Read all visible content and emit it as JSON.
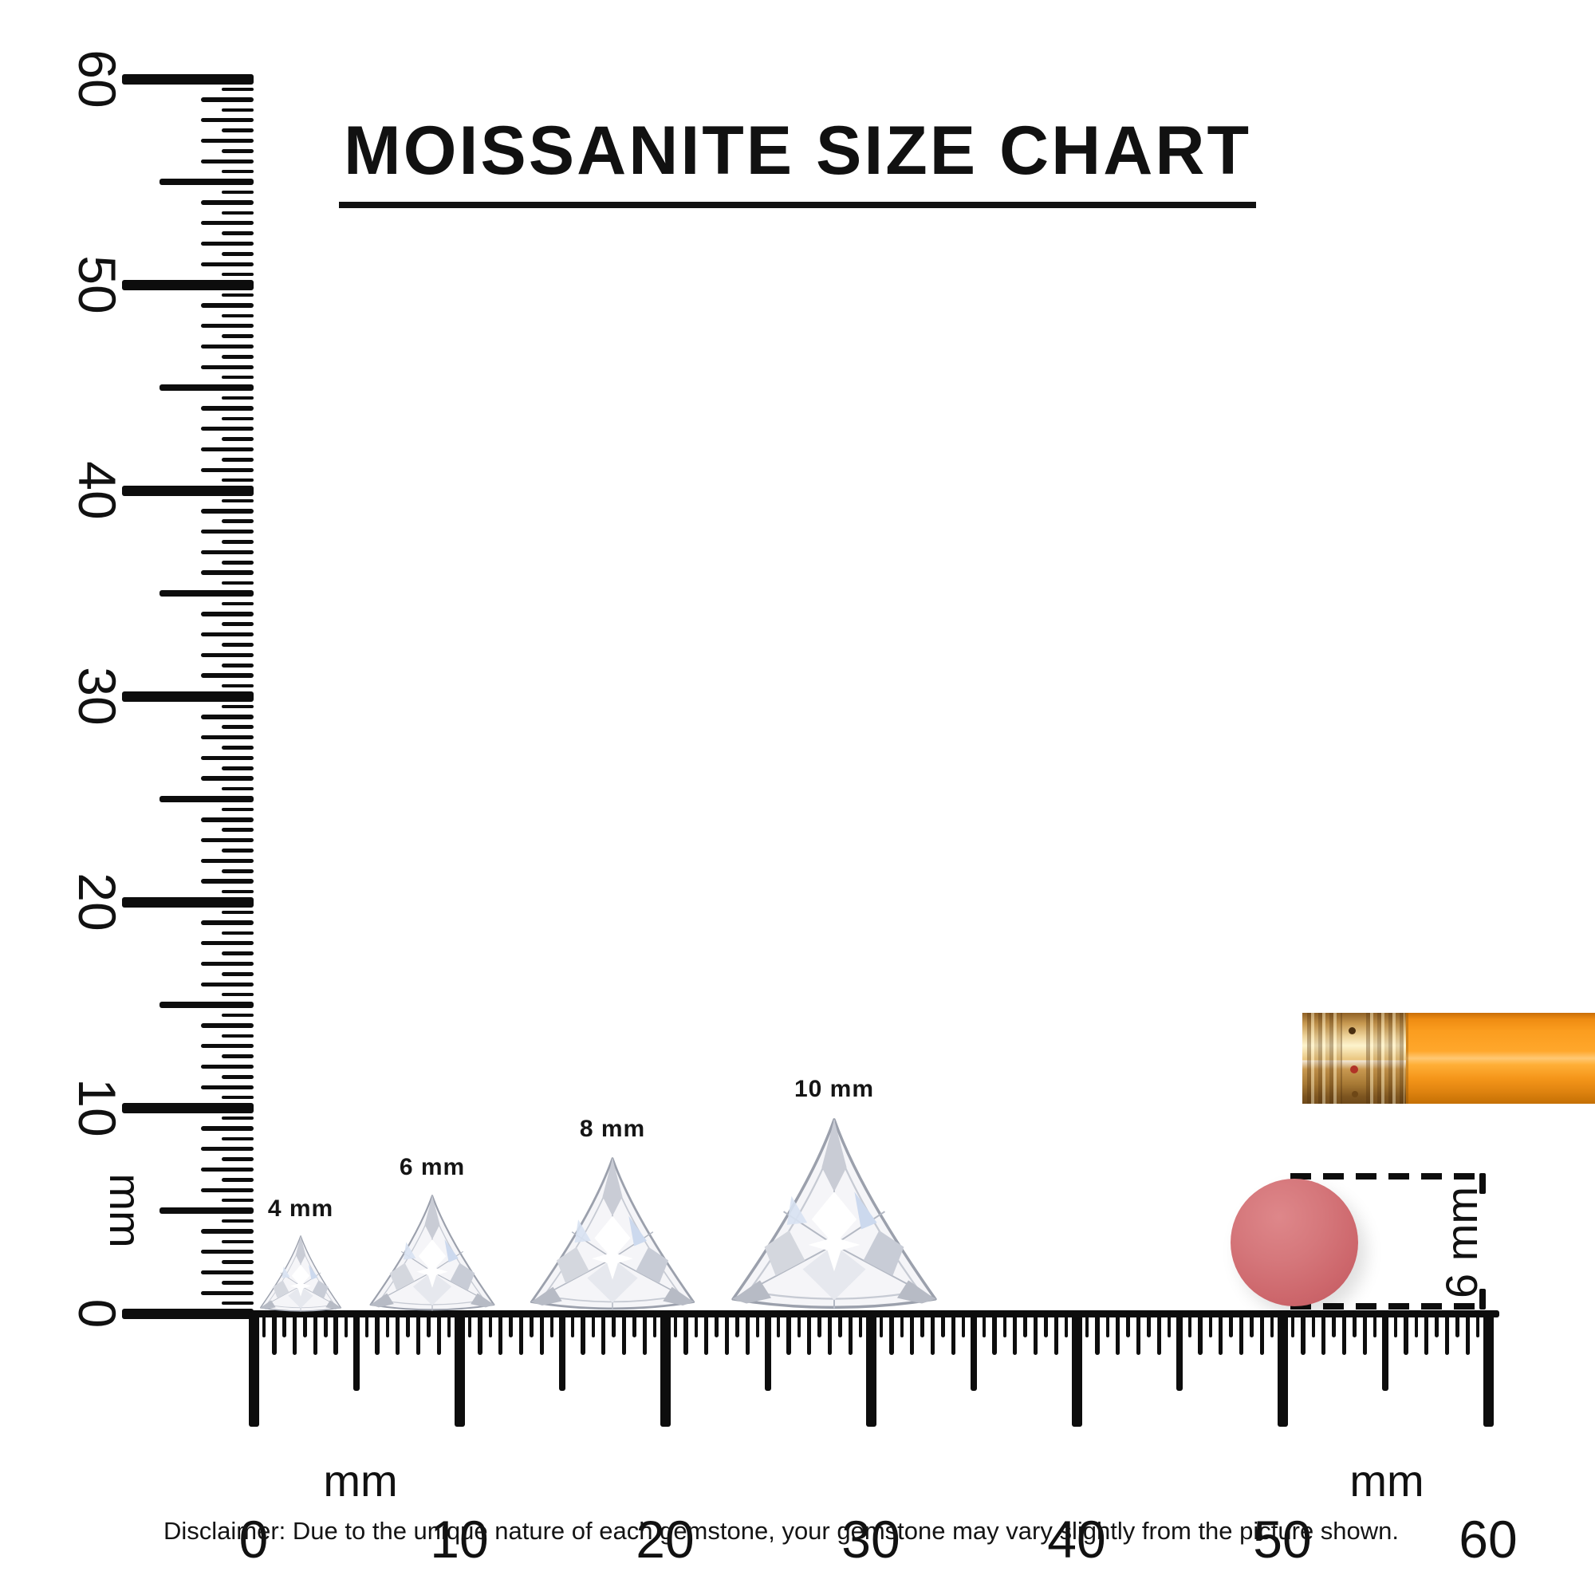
{
  "title": "MOISSANITE SIZE CHART",
  "rulers": {
    "vertical": {
      "unit": "mm",
      "labels": [
        "0",
        "10",
        "20",
        "30",
        "40",
        "50",
        "60"
      ],
      "range_mm": [
        0,
        60
      ],
      "tick_step_mm": 0.5
    },
    "horizontal": {
      "unit_left": "mm",
      "unit_right": "mm",
      "labels": [
        "0",
        "10",
        "20",
        "30",
        "40",
        "50",
        "60"
      ],
      "range_mm": [
        0,
        60
      ],
      "tick_step_mm": 0.5
    }
  },
  "gems": [
    {
      "label": "4 mm",
      "size_mm": 4
    },
    {
      "label": "6 mm",
      "size_mm": 6
    },
    {
      "label": "8 mm",
      "size_mm": 8
    },
    {
      "label": "10 mm",
      "size_mm": 10
    }
  ],
  "reference_objects": {
    "pencil": {
      "body_color": "#f99c1e",
      "ferrule_color": "#e2b469",
      "eraser_color": "#cf6d72"
    },
    "eraser_end_view": {
      "label": "6 mm",
      "size_mm": 6,
      "color": "#d06b6e"
    }
  },
  "disclaimer": "Disclaimer: Due to the unique nature of each gemstone, your gemstone may vary slightly from the picture shown.",
  "ink_color": "#0d0d0d"
}
